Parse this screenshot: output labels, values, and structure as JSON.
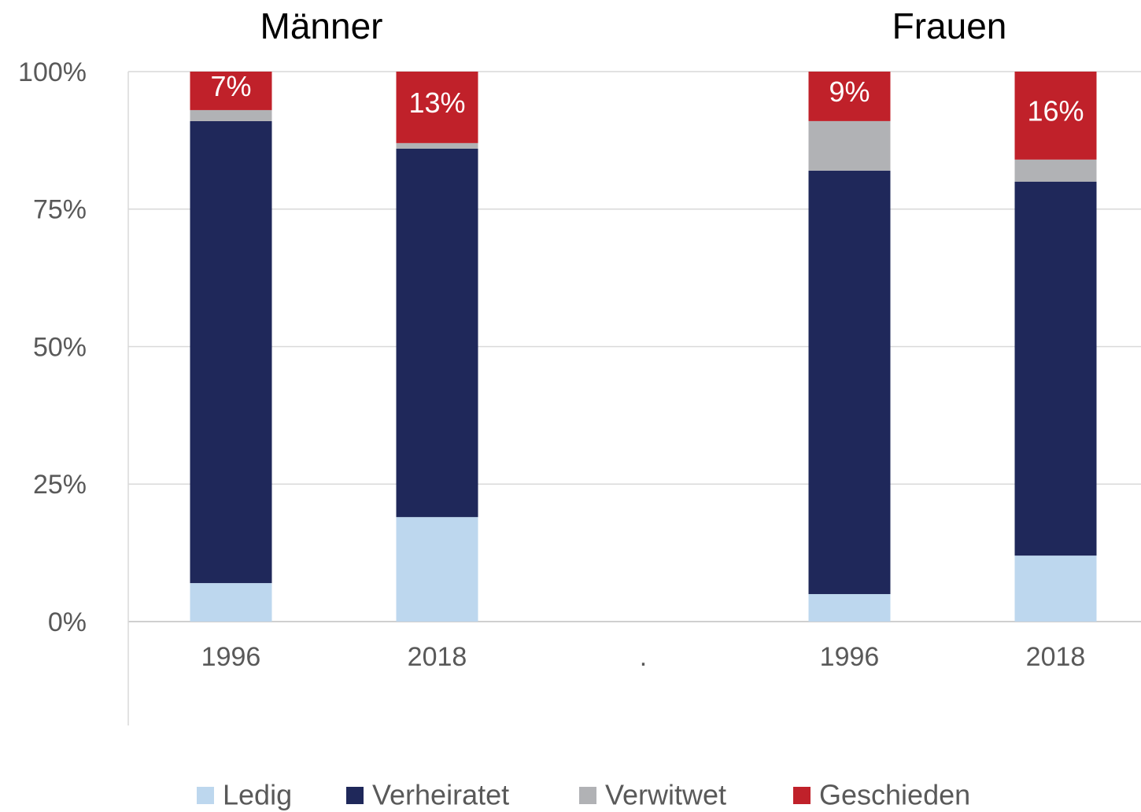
{
  "chart_data": {
    "type": "stacked_bar",
    "group_labels": [
      "Männer",
      "Frauen"
    ],
    "categories": [
      "1996",
      "2018",
      ".",
      "1996",
      "2018"
    ],
    "series": [
      {
        "name": "Ledig",
        "color": "#bdd7ee",
        "values": [
          7,
          19,
          null,
          5,
          12
        ]
      },
      {
        "name": "Verheiratet",
        "color": "#1f285a",
        "values": [
          84,
          67,
          null,
          77,
          68
        ]
      },
      {
        "name": "Verwitwet",
        "color": "#b1b2b5",
        "values": [
          2,
          1,
          null,
          9,
          4
        ]
      },
      {
        "name": "Geschieden",
        "color": "#c0212a",
        "values": [
          7,
          13,
          null,
          9,
          16
        ],
        "value_labels": [
          "7%",
          "13%",
          null,
          "9%",
          "16%"
        ]
      }
    ],
    "ylim": [
      0,
      100
    ],
    "yticks": [
      {
        "value": 0,
        "label": "0%"
      },
      {
        "value": 25,
        "label": "25%"
      },
      {
        "value": 50,
        "label": "50%"
      },
      {
        "value": 75,
        "label": "75%"
      },
      {
        "value": 100,
        "label": "100%"
      }
    ],
    "grid": true,
    "legend": "bottom"
  }
}
